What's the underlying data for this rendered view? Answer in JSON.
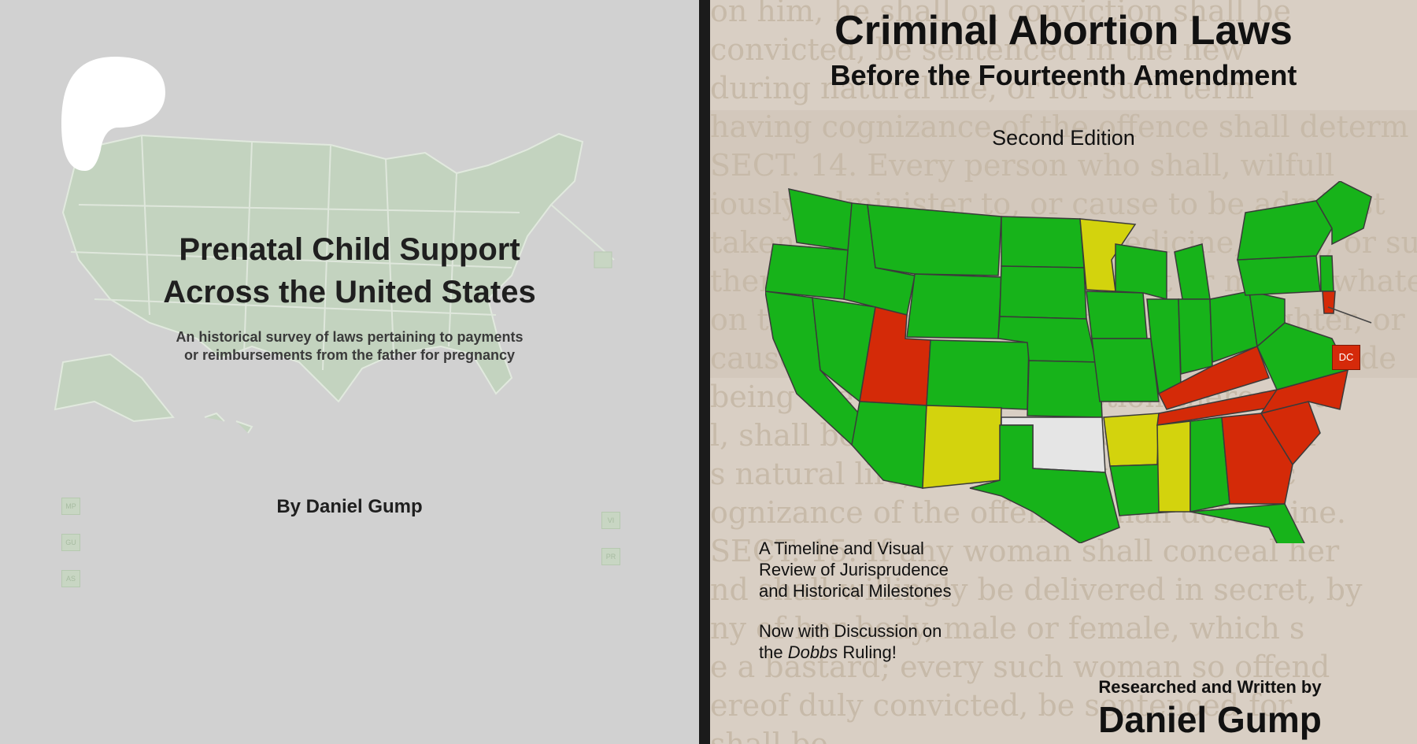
{
  "left_cover": {
    "title_line1": "Prenatal Child Support",
    "title_line2": "Across the United States",
    "subtitle_line1": "An historical survey of laws pertaining to payments",
    "subtitle_line2": "or reimbursements from the father for pregnancy",
    "author": "By Daniel Gump",
    "territories": [
      "MP",
      "GU",
      "AS",
      "VI",
      "PR",
      "DC"
    ],
    "map_color": "#c3d3bf",
    "background_color": "#d1d1d1"
  },
  "right_cover": {
    "title": "Criminal Abortion Laws",
    "subtitle": "Before the Fourteenth Amendment",
    "edition": "Second Edition",
    "dc_label": "DC",
    "timeline_line1": "A Timeline and Visual",
    "timeline_line2": "Review of Jurisprudence",
    "timeline_line3": "and Historical Milestones",
    "dobbs_line1": "Now with Discussion on",
    "dobbs_prefix": "the ",
    "dobbs_italic": "Dobbs",
    "dobbs_suffix": " Ruling!",
    "byline": "Researched and Written by",
    "author": "Daniel Gump",
    "colors": {
      "green": "#17b31a",
      "yellow": "#d3d30d",
      "red": "#d42a08",
      "white": "#e5e5e5"
    },
    "background_text": [
      "on him, he shall on conviction shall be",
      "convicted, be sentenced in the new",
      "during natural life, or for such term",
      "having cognizance of the offence shall determ",
      "SECT. 14. Every person who shall, wilfull",
      "iously administer to, or cause to be administ",
      "taken by any woman any medicine, drug, or substa",
      "thereof, or use any instrument or means whatever, wi",
      "on thereof, shall be guilty of manslaughter, or",
      "cause the death of the woman, he shall be de",
      "being the same, on conviction thereof du",
      "l, shall be sentenced in the Newgate pri",
      "s natural life, or for such term as the c",
      "ognizance of the offence, shall determine.",
      "SECT. 15. If any woman shall conceal her",
      "nd shall willingly be delivered in secret, by",
      "ny of her body, male or female, which s",
      "e a bastard; every such woman so offend",
      "ereof duly convicted, be sentenced for",
      "shall be"
    ]
  }
}
